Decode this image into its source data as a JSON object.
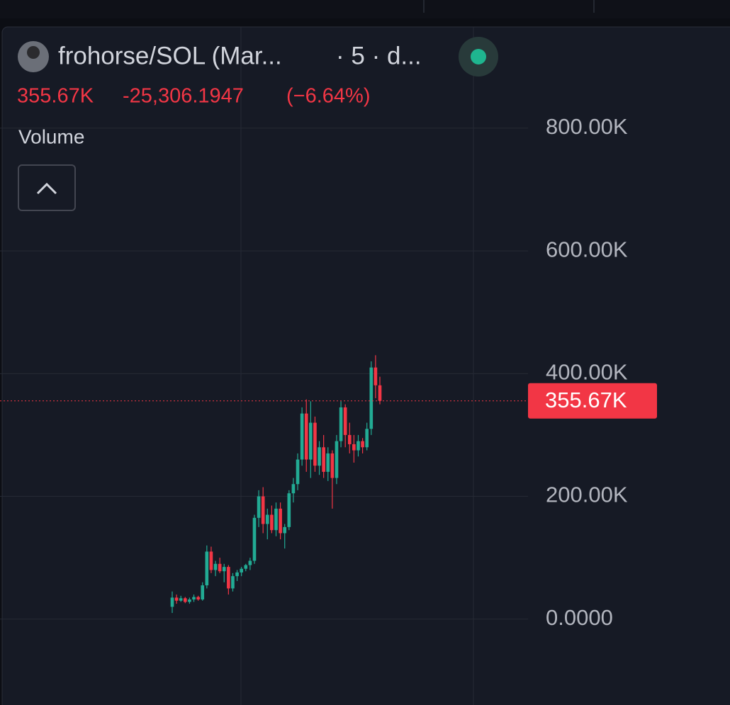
{
  "chart_data": {
    "type": "candlestick",
    "symbol": "frohorse/SOL (Mar...",
    "interval": "· 5 · d...",
    "last_price": {
      "value": 355670,
      "label": "355.67K"
    },
    "change": "-25,306.1947",
    "change_pct": "(−6.64%)",
    "indicator": "Volume",
    "up_color": "#22ab94",
    "down_color": "#f23645",
    "grid": true,
    "ylim": [
      -140000,
      965000
    ],
    "yticks": [
      {
        "value": 0,
        "label": "0.0000"
      },
      {
        "value": 200000,
        "label": "200.00K"
      },
      {
        "value": 400000,
        "label": "400.00K"
      },
      {
        "value": 600000,
        "label": "600.00K"
      },
      {
        "value": 800000,
        "label": "800.00K"
      }
    ],
    "open": [
      20000,
      35000,
      30000,
      34000,
      28000,
      32000,
      36000,
      32000,
      55000,
      110000,
      80000,
      90000,
      78000,
      85000,
      50000,
      70000,
      76000,
      82000,
      88000,
      95000,
      165000,
      200000,
      155000,
      170000,
      145000,
      180000,
      140000,
      150000,
      205000,
      220000,
      260000,
      335000,
      260000,
      320000,
      250000,
      280000,
      240000,
      270000,
      230000,
      290000,
      345000,
      300000,
      285000,
      275000,
      290000,
      280000,
      310000,
      410000,
      380976
    ],
    "high": [
      45000,
      40000,
      38000,
      36000,
      35000,
      40000,
      38000,
      60000,
      120000,
      118000,
      95000,
      100000,
      90000,
      88000,
      75000,
      80000,
      85000,
      90000,
      100000,
      170000,
      210000,
      215000,
      180000,
      185000,
      190000,
      190000,
      155000,
      210000,
      230000,
      270000,
      345000,
      358000,
      355000,
      330000,
      290000,
      300000,
      280000,
      275000,
      300000,
      355000,
      350000,
      320000,
      300000,
      300000,
      295000,
      320000,
      420000,
      430000,
      395000
    ],
    "low": [
      10000,
      25000,
      28000,
      26000,
      25000,
      28000,
      30000,
      30000,
      50000,
      75000,
      70000,
      75000,
      60000,
      40000,
      45000,
      62000,
      70000,
      78000,
      80000,
      90000,
      150000,
      140000,
      130000,
      140000,
      135000,
      130000,
      115000,
      145000,
      190000,
      210000,
      250000,
      240000,
      230000,
      240000,
      235000,
      230000,
      225000,
      180000,
      220000,
      280000,
      280000,
      270000,
      255000,
      265000,
      270000,
      275000,
      300000,
      360000,
      350000
    ],
    "close": [
      35000,
      30000,
      34000,
      28000,
      32000,
      36000,
      32000,
      55000,
      110000,
      80000,
      90000,
      78000,
      85000,
      50000,
      70000,
      76000,
      82000,
      88000,
      95000,
      165000,
      200000,
      155000,
      170000,
      145000,
      180000,
      140000,
      150000,
      205000,
      220000,
      260000,
      335000,
      260000,
      320000,
      250000,
      280000,
      240000,
      270000,
      230000,
      290000,
      345000,
      300000,
      285000,
      275000,
      290000,
      280000,
      310000,
      410000,
      380976,
      355670
    ]
  }
}
